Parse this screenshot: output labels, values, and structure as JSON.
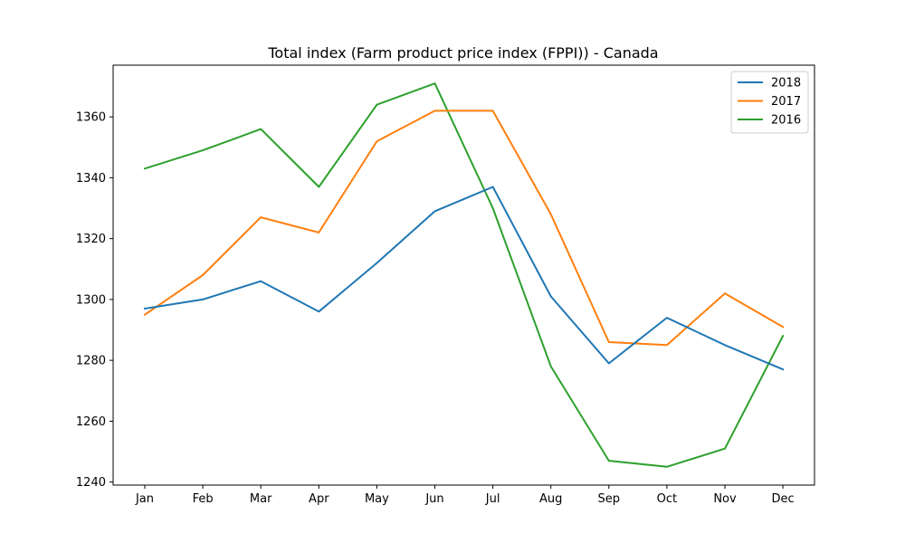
{
  "chart_data": {
    "type": "line",
    "title": "Total index (Farm product price index (FPPI)) - Canada",
    "xlabel": "",
    "ylabel": "",
    "categories": [
      "Jan",
      "Feb",
      "Mar",
      "Apr",
      "May",
      "Jun",
      "Jul",
      "Aug",
      "Sep",
      "Oct",
      "Nov",
      "Dec"
    ],
    "series": [
      {
        "name": "2018",
        "color": "#1f77b4",
        "values": [
          1297,
          1300,
          1306,
          1296,
          1312,
          1329,
          1337,
          1301,
          1279,
          1294,
          1285,
          1277
        ]
      },
      {
        "name": "2017",
        "color": "#ff7f0e",
        "values": [
          1295,
          1308,
          1327,
          1322,
          1352,
          1362,
          1362,
          1328,
          1286,
          1285,
          1302,
          1291
        ]
      },
      {
        "name": "2016",
        "color": "#2ca02c",
        "values": [
          1343,
          1349,
          1356,
          1337,
          1364,
          1371,
          1330,
          1278,
          1247,
          1245,
          1251,
          1288
        ]
      }
    ],
    "ylim": [
      1239,
      1377
    ],
    "yticks": [
      1240,
      1260,
      1280,
      1300,
      1320,
      1340,
      1360
    ],
    "grid": false,
    "legend_position": "top-right"
  }
}
